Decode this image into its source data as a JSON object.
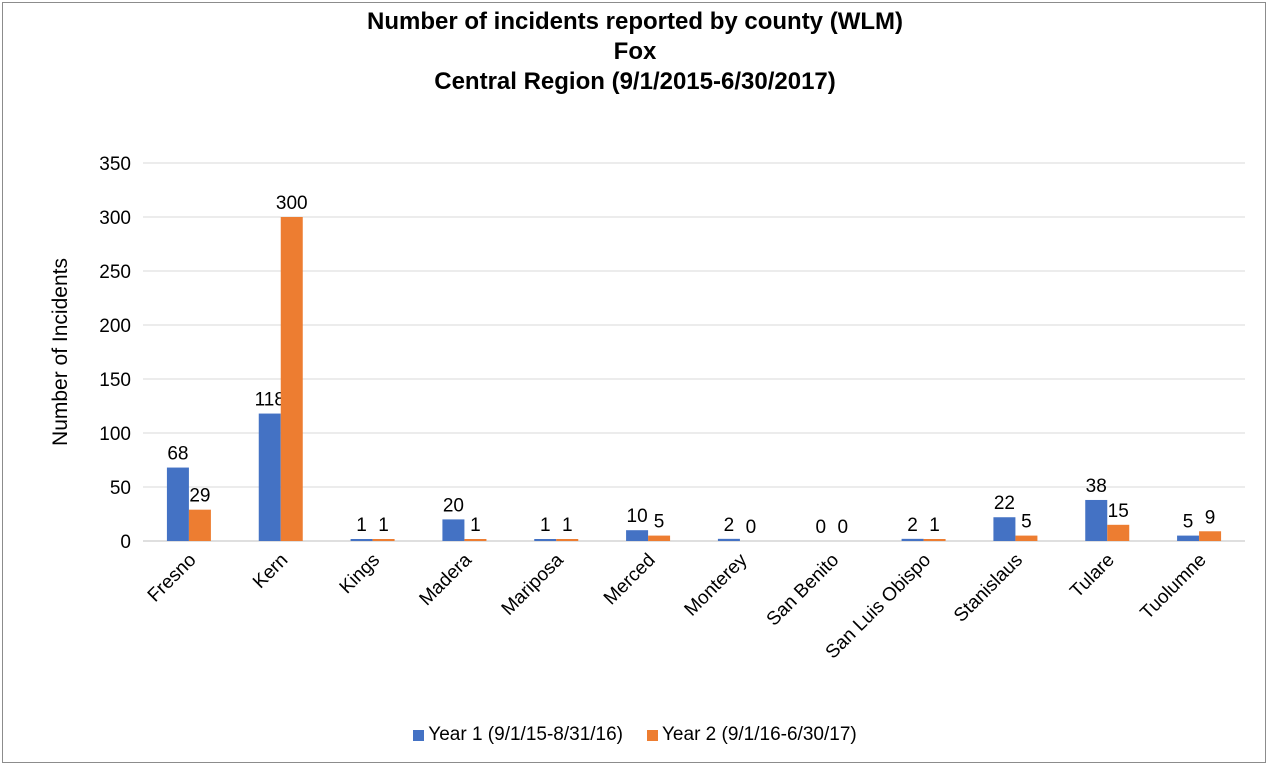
{
  "chart_data": {
    "type": "bar",
    "title_lines": [
      "Number of incidents reported by county (WLM)",
      "Fox",
      "Central Region (9/1/2015-6/30/2017)"
    ],
    "ylabel": "Number of Incidents",
    "xlabel": "",
    "ylim": [
      0,
      350
    ],
    "yticks": [
      0,
      50,
      100,
      150,
      200,
      250,
      300,
      350
    ],
    "grid": true,
    "legend_position": "bottom",
    "categories": [
      "Fresno",
      "Kern",
      "Kings",
      "Madera",
      "Mariposa",
      "Merced",
      "Monterey",
      "San Benito",
      "San Luis Obispo",
      "Stanislaus",
      "Tulare",
      "Tuolumne"
    ],
    "series": [
      {
        "name": "Year 1 (9/1/15-8/31/16)",
        "color": "#4472c4",
        "values": [
          68,
          118,
          1,
          20,
          1,
          10,
          2,
          0,
          2,
          22,
          38,
          5
        ]
      },
      {
        "name": "Year 2 (9/1/16-6/30/17)",
        "color": "#ed7d31",
        "values": [
          29,
          300,
          1,
          1,
          1,
          5,
          0,
          0,
          1,
          5,
          15,
          9
        ]
      }
    ]
  }
}
